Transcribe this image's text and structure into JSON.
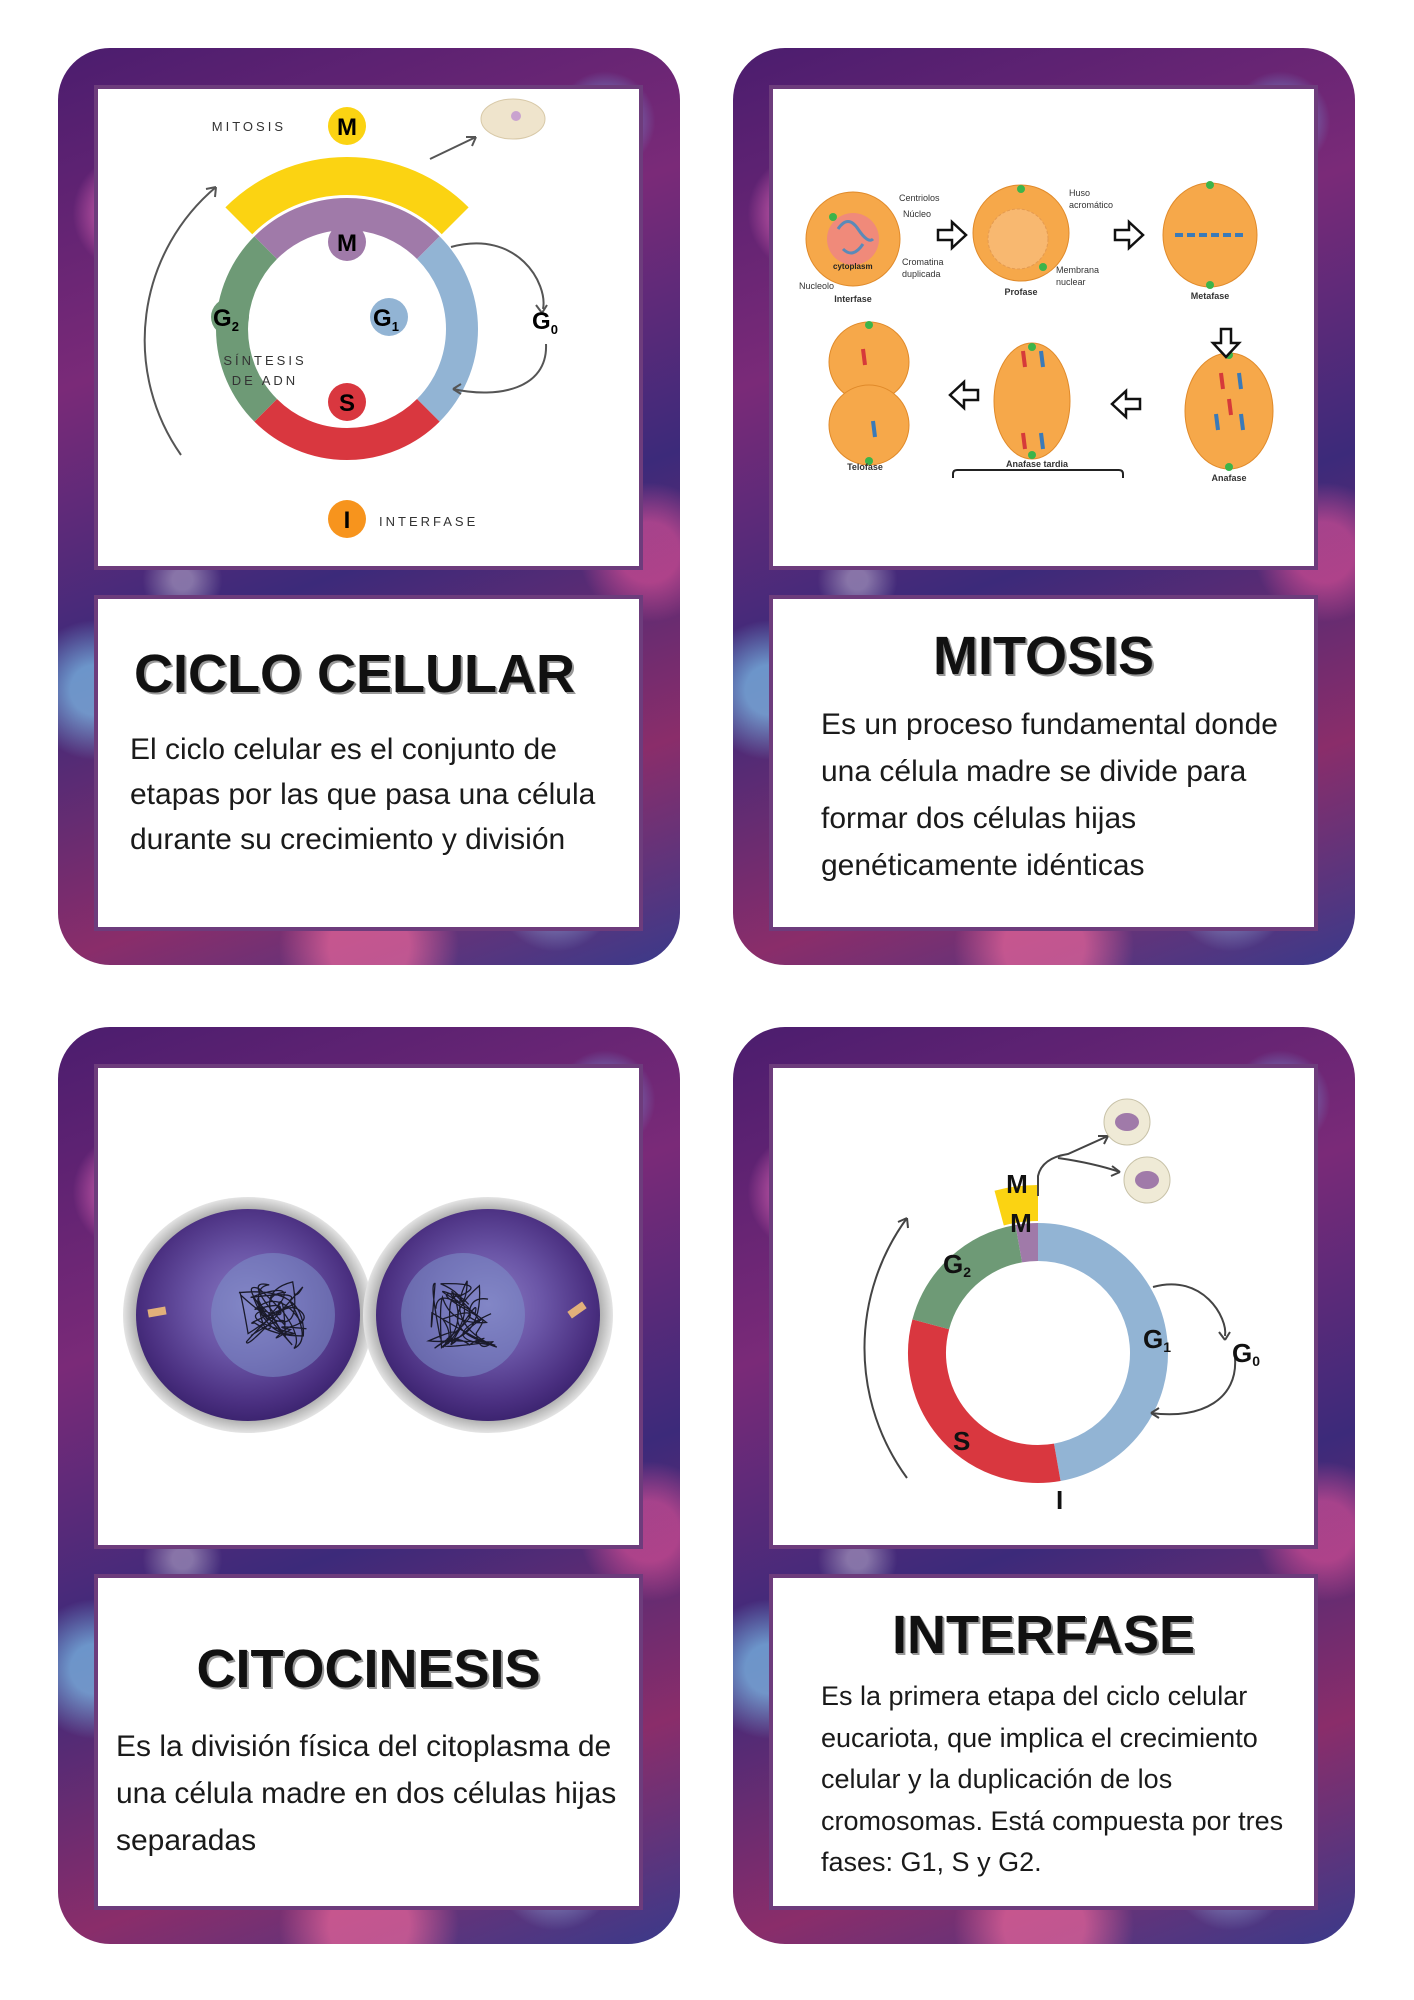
{
  "cards": [
    {
      "title": "CICLO CELULAR",
      "body": "El ciclo celular es el conjunto de etapas por las que pasa una célula durante su crecimiento y división",
      "diagram": {
        "mitosis": "MITOSIS",
        "m": "M",
        "g1": "G",
        "g1_sub": "1",
        "g2": "G",
        "g2_sub": "2",
        "s": "S",
        "g0": "G",
        "g0_sub": "0",
        "sintesis_1": "SÍNTESIS",
        "sintesis_2": "DE ADN",
        "i": "I",
        "interfase": "INTERFASE"
      }
    },
    {
      "title": "MITOSIS",
      "body": "Es un proceso fundamental donde una célula madre se divide para formar dos células hijas genéticamente idénticas",
      "diagram": {
        "centriolos": "Centriolos",
        "nucleo": "Núcleo",
        "cromatina_1": "Cromatina",
        "cromatina_2": "duplicada",
        "cytoplasm": "cytoplasm",
        "nucleolo": "Nucleolo",
        "interfase": "Interfase",
        "huso_1": "Huso",
        "huso_2": "acromático",
        "membrana_1": "Membrana",
        "membrana_2": "nuclear",
        "profase": "Profase",
        "metafase": "Metafase",
        "anafase": "Anafase",
        "anafase_tardia": "Anafase tardia",
        "telofase": "Telofase"
      }
    },
    {
      "title": "CITOCINESIS",
      "body": "Es la división física del citoplasma de una célula madre en dos células hijas separadas"
    },
    {
      "title": "INTERFASE",
      "body": "Es la primera etapa del ciclo celular eucariota, que implica el crecimiento celular y la duplicación de los cromosomas. Está compuesta por tres fases: G1, S y G2.",
      "diagram": {
        "m_outer": "M",
        "m_inner": "M",
        "g2": "G",
        "g2_sub": "2",
        "g1": "G",
        "g1_sub": "1",
        "g0": "G",
        "g0_sub": "0",
        "s": "S",
        "i": "I"
      }
    }
  ],
  "colors": {
    "frame": "#6d3c7c",
    "orange": "#f7941d",
    "yellow": "#fbd312",
    "purple": "#a07aa9",
    "blue": "#92b4d4",
    "green": "#6e9a76",
    "red": "#d9373f"
  }
}
